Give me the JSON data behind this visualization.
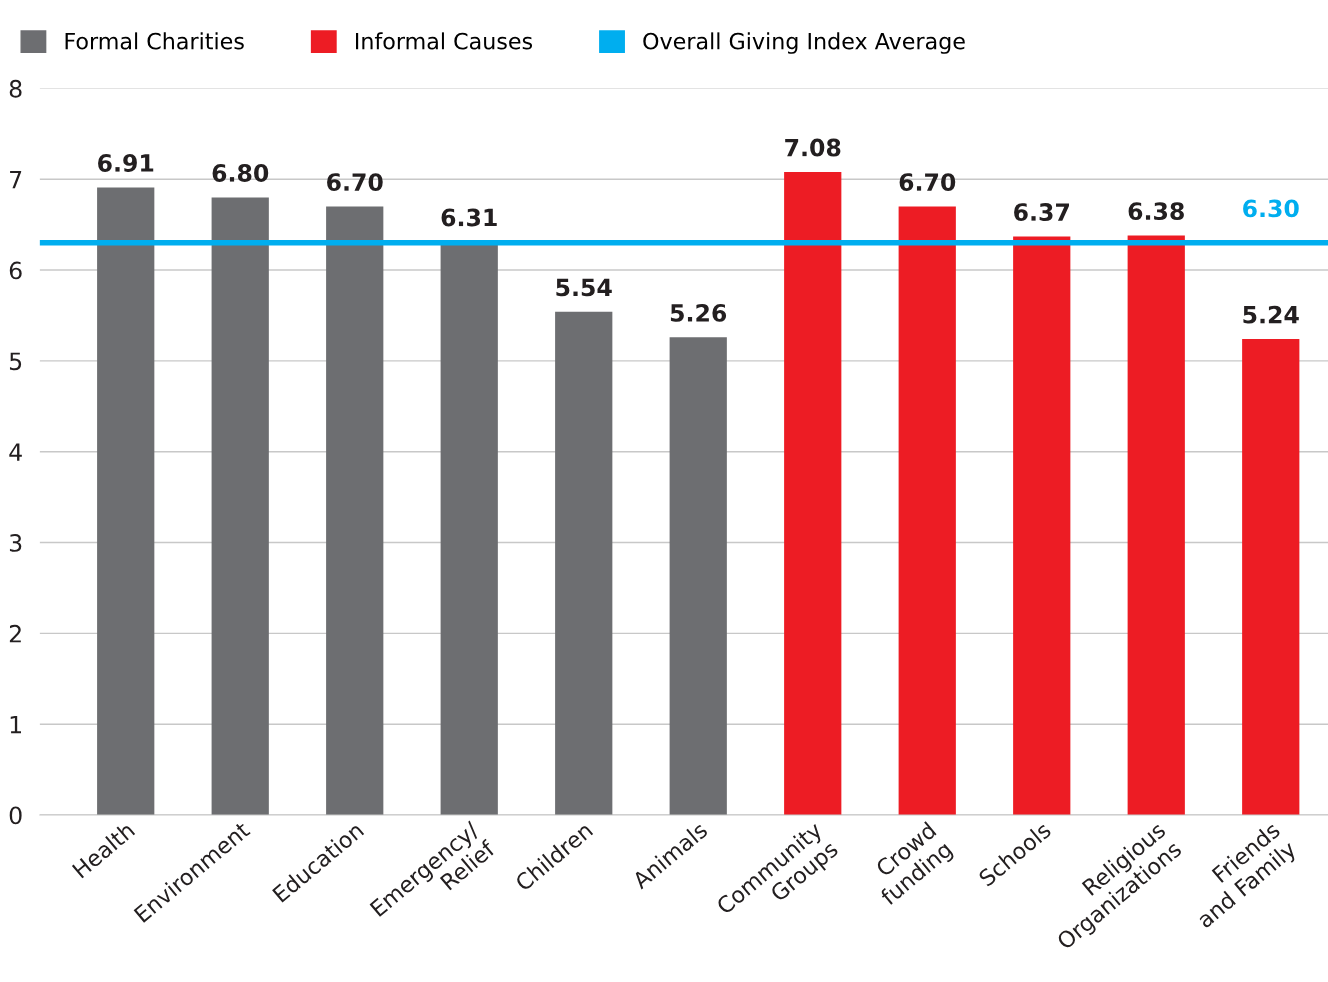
{
  "chart_data": {
    "type": "bar",
    "categories": [
      "Health",
      "Environment",
      "Education",
      "Emergency/\nRelief",
      "Children",
      "Animals",
      "Community\nGroups",
      "Crowd\nfunding",
      "Schools",
      "Religious\nOrganizations",
      "Friends\nand Family"
    ],
    "series": [
      {
        "name": "Formal Charities",
        "color": "#6d6e71",
        "values": [
          6.91,
          6.8,
          6.7,
          6.31,
          5.54,
          5.26,
          null,
          null,
          null,
          null,
          null
        ],
        "value_labels": [
          "6.91",
          "6.80",
          "6.70",
          "6.31",
          "5.54",
          "5.26",
          null,
          null,
          null,
          null,
          null
        ]
      },
      {
        "name": "Informal Causes",
        "color": "#ed1c24",
        "values": [
          null,
          null,
          null,
          null,
          null,
          null,
          7.08,
          6.7,
          6.37,
          6.38,
          5.24
        ],
        "value_labels": [
          null,
          null,
          null,
          null,
          null,
          null,
          "7.08",
          "6.70",
          "6.37",
          "6.38",
          "5.24"
        ]
      }
    ],
    "ref_lines": [
      {
        "axis": "y",
        "value": 6.3,
        "label": "Overall Giving Index Average",
        "color": "#00aeef"
      }
    ],
    "annotations": [
      {
        "text": "6.30",
        "x": "Friends\nand Family",
        "y": 6.3
      }
    ],
    "ylim": [
      0,
      8
    ],
    "yticks": [
      0,
      1,
      2,
      3,
      4,
      5,
      6,
      7,
      8
    ],
    "grid": "y",
    "legend": "top left"
  }
}
